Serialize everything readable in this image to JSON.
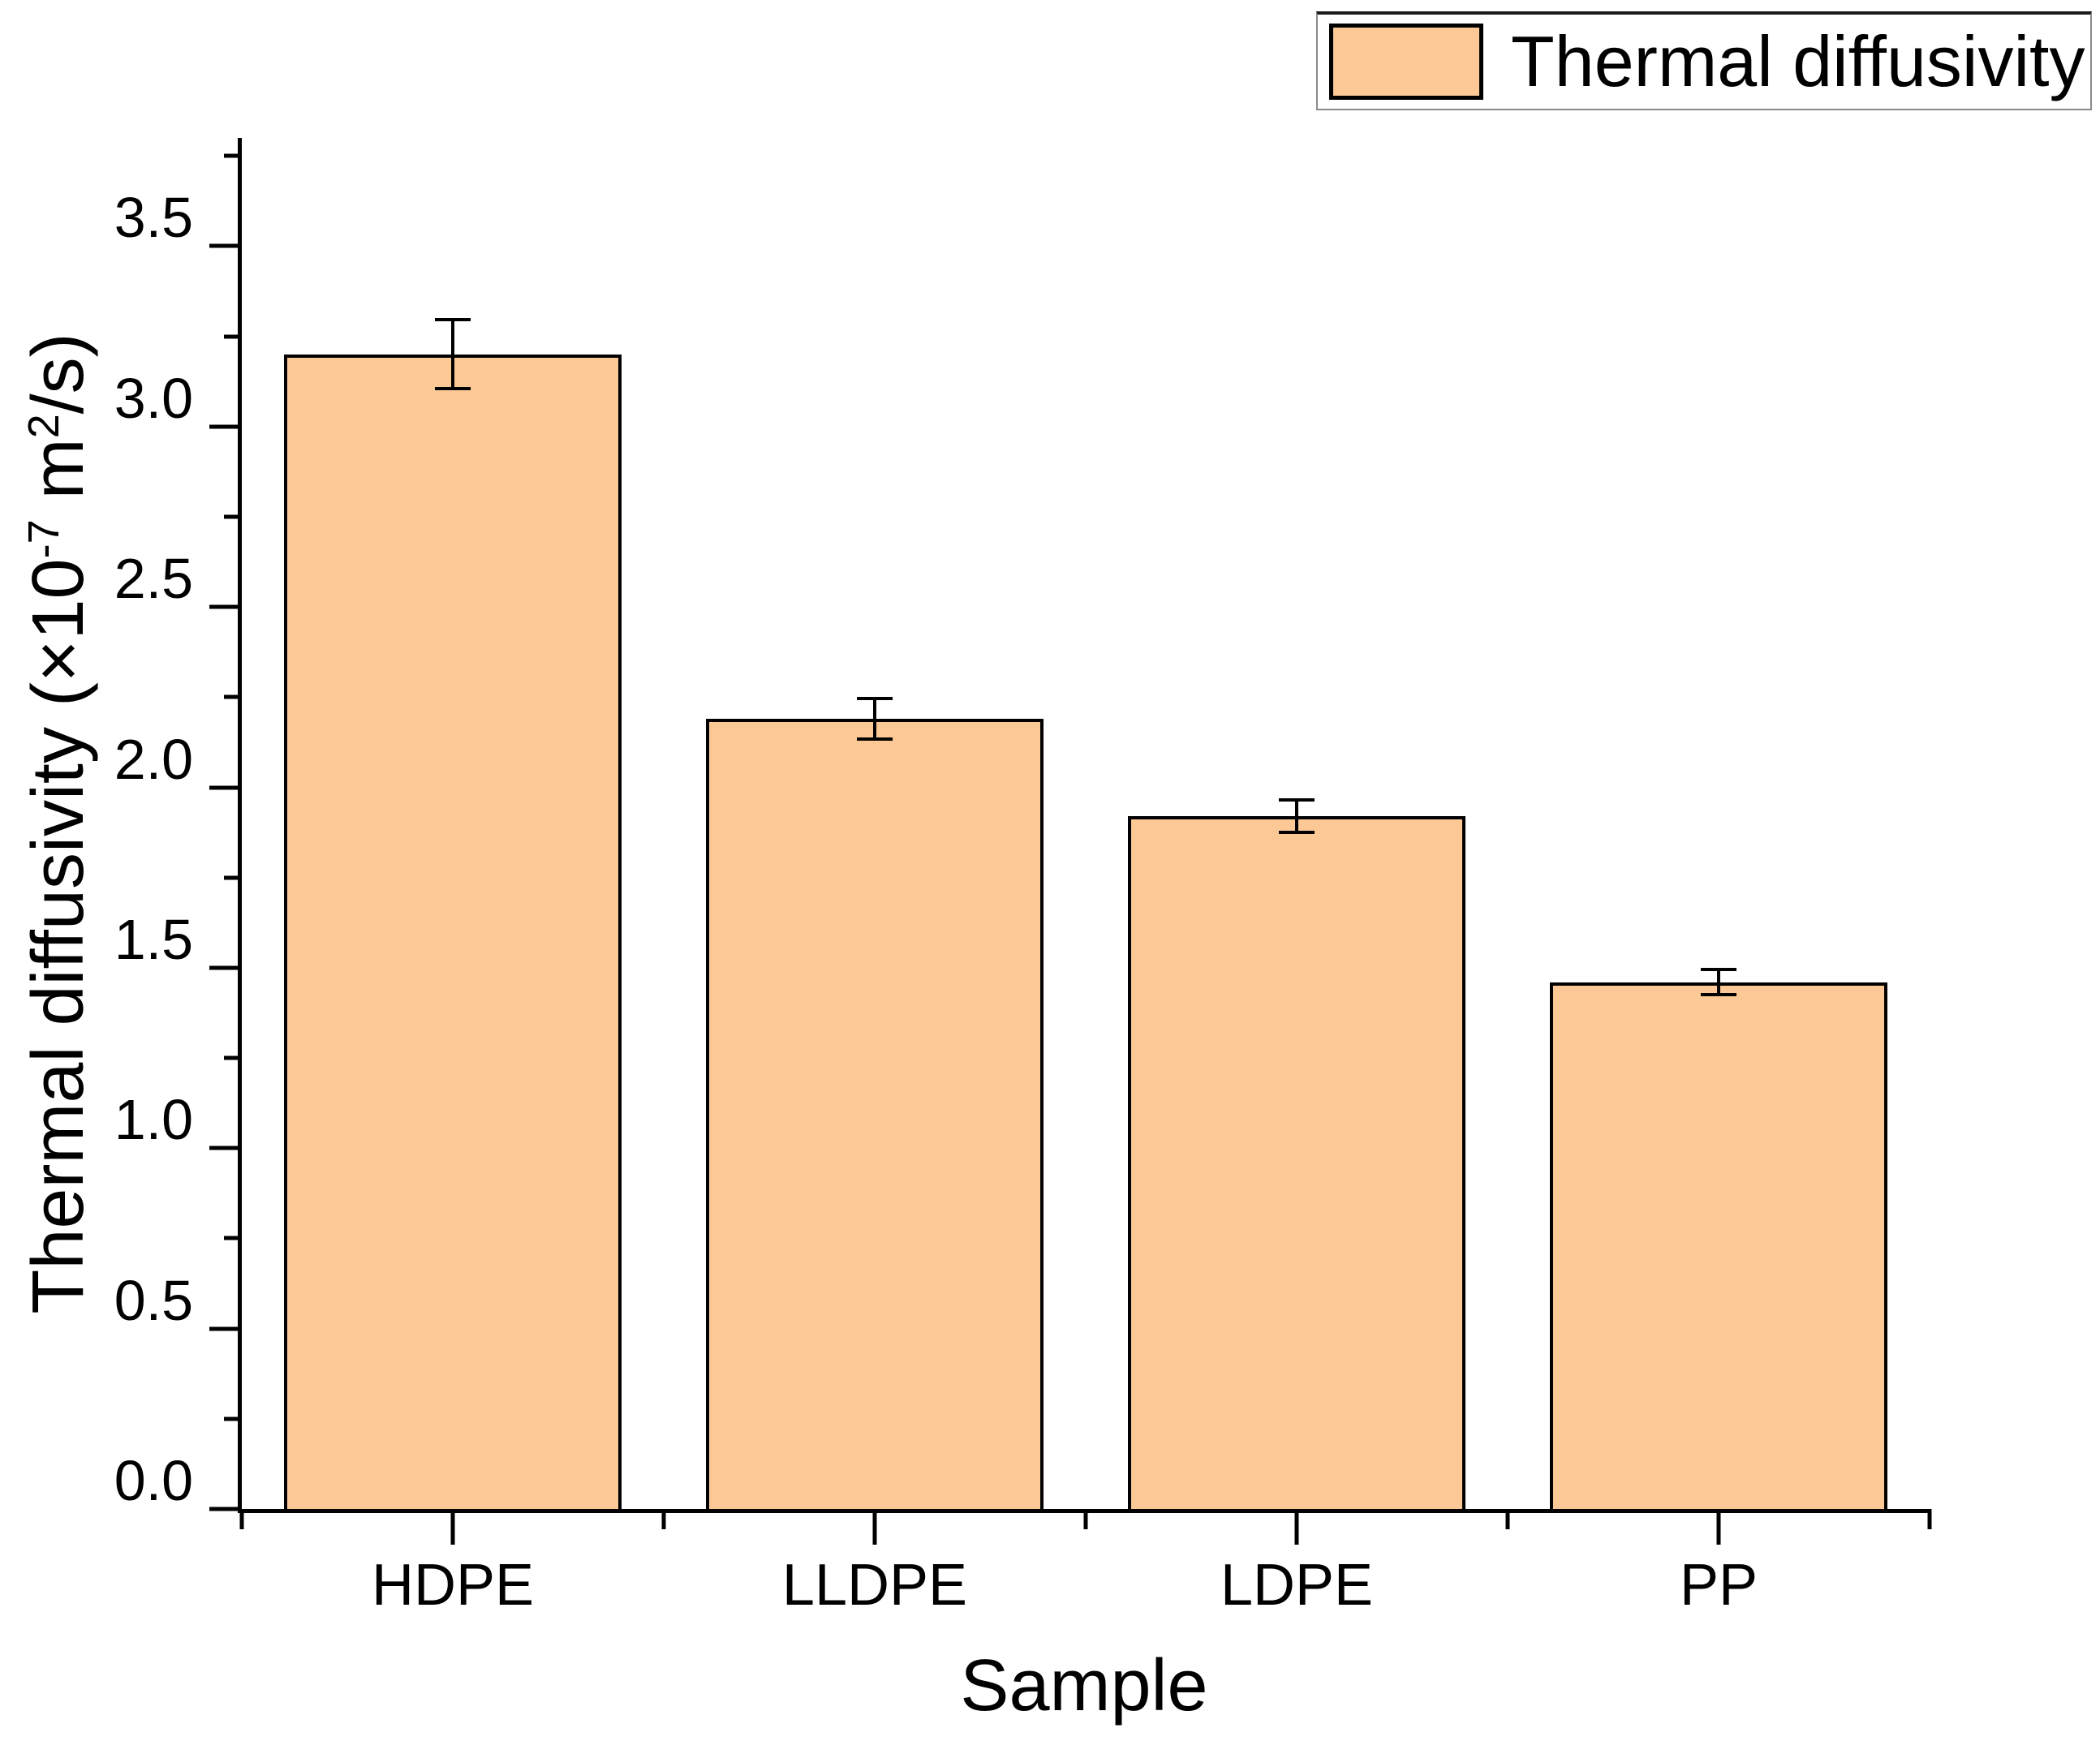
{
  "legend": {
    "label": "Thermal diffusivity",
    "swatch_color": "#FCC996",
    "swatch_border": "#000000",
    "box_border": "#8a8a8a"
  },
  "axes": {
    "y": {
      "title_parts": {
        "p1": "Thermal diffusivity (×10",
        "sup1": "-7",
        "p2": " m",
        "sup2": "2",
        "p3": "/s)"
      }
    },
    "x": {
      "title": "Sample"
    }
  },
  "chart_data": {
    "type": "bar",
    "title": "",
    "categories": [
      "HDPE",
      "LLDPE",
      "LDPE",
      "PP"
    ],
    "series": [
      {
        "name": "Thermal diffusivity",
        "values": [
          3.2,
          2.19,
          1.92,
          1.46
        ],
        "errors": [
          0.1,
          0.06,
          0.05,
          0.04
        ]
      }
    ],
    "xlabel": "Sample",
    "ylabel": "Thermal diffusivity (×10⁻⁷ m²/s)",
    "ylim": [
      0,
      3.8
    ],
    "ytick_major_step": 0.5,
    "ytick_minor_step": 0.25,
    "ytick_labels": [
      "0.0",
      "0.5",
      "1.0",
      "1.5",
      "2.0",
      "2.5",
      "3.0",
      "3.5"
    ],
    "bar_fill": "#FCC996",
    "bar_border": "#000000",
    "error_color": "#000000",
    "grid": false,
    "legend_position": "top-right"
  }
}
